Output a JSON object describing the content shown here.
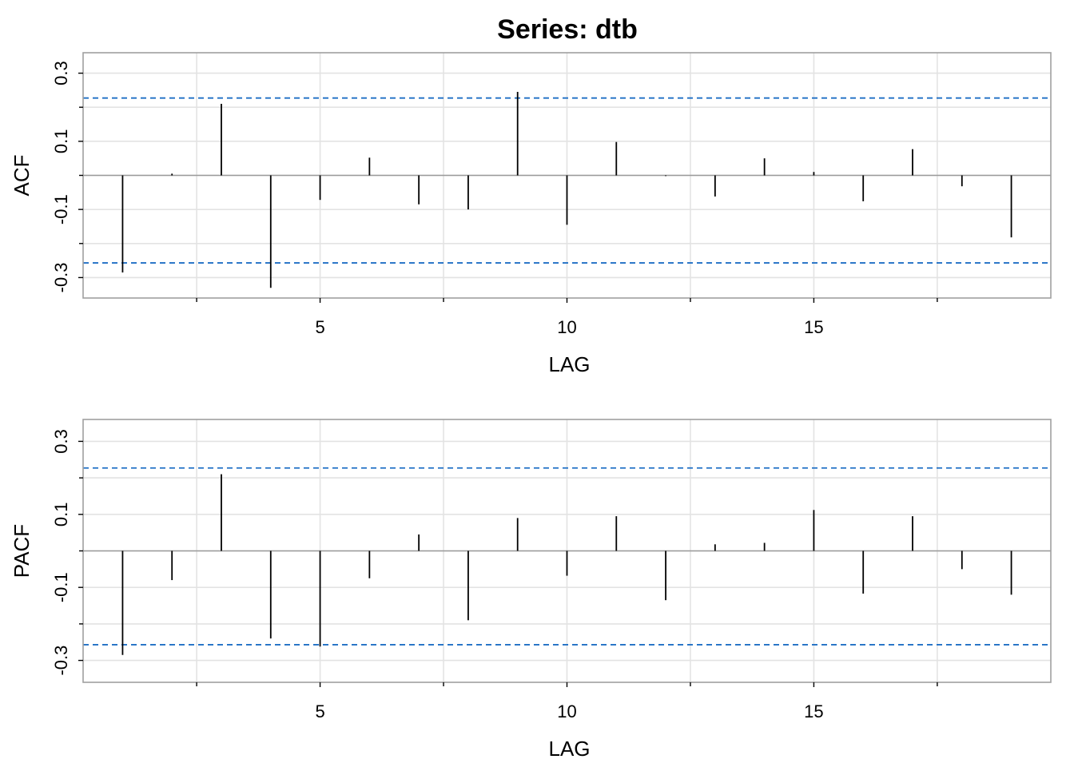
{
  "title": "Series:  dtb",
  "chart_data": [
    {
      "type": "bar",
      "ylabel": "ACF",
      "xlabel": "LAG",
      "xlim": [
        0.2,
        19.8
      ],
      "ylim": [
        -0.36,
        0.36
      ],
      "x_ticks_major": [
        5,
        10,
        15
      ],
      "x_ticks_major_labels": [
        "5",
        "10",
        "15"
      ],
      "x_ticks_minor": [
        2.5,
        7.5,
        12.5,
        17.5
      ],
      "y_ticks_major": [
        -0.3,
        -0.1,
        0.1,
        0.3
      ],
      "y_ticks_major_labels": [
        "-0.3",
        "-0.1",
        "0.1",
        "0.3"
      ],
      "y_ticks_minor": [
        -0.2,
        0.0,
        0.2
      ],
      "grid": true,
      "confidence_bounds": [
        0.227,
        -0.257
      ],
      "confidence_color": "#1f6fc5",
      "lags": [
        1,
        2,
        3,
        4,
        5,
        6,
        7,
        8,
        9,
        10,
        11,
        12,
        13,
        14,
        15,
        16,
        17,
        18,
        19
      ],
      "values": [
        -0.285,
        0.005,
        0.21,
        -0.33,
        -0.072,
        0.052,
        -0.085,
        -0.1,
        0.245,
        -0.145,
        0.098,
        -0.002,
        -0.062,
        0.05,
        0.01,
        -0.076,
        0.077,
        -0.032,
        -0.182
      ]
    },
    {
      "type": "bar",
      "ylabel": "PACF",
      "xlabel": "LAG",
      "xlim": [
        0.2,
        19.8
      ],
      "ylim": [
        -0.36,
        0.36
      ],
      "x_ticks_major": [
        5,
        10,
        15
      ],
      "x_ticks_major_labels": [
        "5",
        "10",
        "15"
      ],
      "x_ticks_minor": [
        2.5,
        7.5,
        12.5,
        17.5
      ],
      "y_ticks_major": [
        -0.3,
        -0.1,
        0.1,
        0.3
      ],
      "y_ticks_major_labels": [
        "-0.3",
        "-0.1",
        "0.1",
        "0.3"
      ],
      "y_ticks_minor": [
        -0.2,
        0.0,
        0.2
      ],
      "grid": true,
      "confidence_bounds": [
        0.227,
        -0.257
      ],
      "confidence_color": "#1f6fc5",
      "lags": [
        1,
        2,
        3,
        4,
        5,
        6,
        7,
        8,
        9,
        10,
        11,
        12,
        13,
        14,
        15,
        16,
        17,
        18,
        19
      ],
      "values": [
        -0.285,
        -0.08,
        0.21,
        -0.24,
        -0.262,
        -0.075,
        0.045,
        -0.19,
        0.09,
        -0.068,
        0.095,
        -0.135,
        0.018,
        0.022,
        0.112,
        -0.117,
        0.095,
        -0.05,
        -0.12
      ]
    }
  ]
}
